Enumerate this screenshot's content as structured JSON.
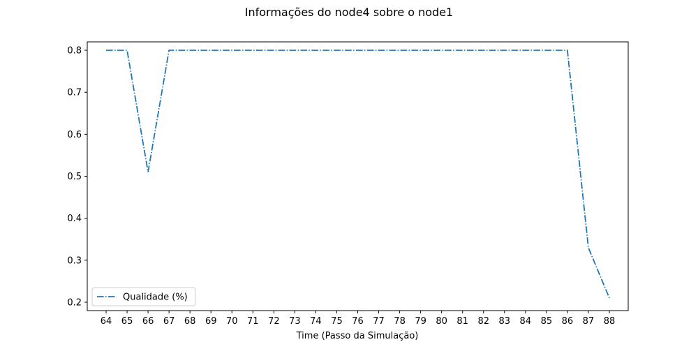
{
  "chart_data": {
    "type": "line",
    "title": "Informações do node4 sobre o node1",
    "xlabel": "Time (Passo da Simulação)",
    "ylabel": "",
    "xlim": [
      63.1,
      88.9
    ],
    "ylim": [
      0.18,
      0.82
    ],
    "xticks": [
      64,
      65,
      66,
      67,
      68,
      69,
      70,
      71,
      72,
      73,
      74,
      75,
      76,
      77,
      78,
      79,
      80,
      81,
      82,
      83,
      84,
      85,
      86,
      87,
      88
    ],
    "yticks": [
      0.2,
      0.3,
      0.4,
      0.5,
      0.6,
      0.7,
      0.8
    ],
    "grid": false,
    "legend_position": "lower left",
    "series": [
      {
        "name": "Qualidade (%)",
        "color": "#1f77b4",
        "line_style": "dash-dot",
        "x": [
          64,
          65,
          66,
          67,
          68,
          69,
          70,
          71,
          72,
          73,
          74,
          75,
          76,
          77,
          78,
          79,
          80,
          81,
          82,
          83,
          84,
          85,
          86,
          87,
          88
        ],
        "y": [
          0.8,
          0.8,
          0.51,
          0.8,
          0.8,
          0.8,
          0.8,
          0.8,
          0.8,
          0.8,
          0.8,
          0.8,
          0.8,
          0.8,
          0.8,
          0.8,
          0.8,
          0.8,
          0.8,
          0.8,
          0.8,
          0.8,
          0.8,
          0.33,
          0.21
        ]
      }
    ]
  }
}
